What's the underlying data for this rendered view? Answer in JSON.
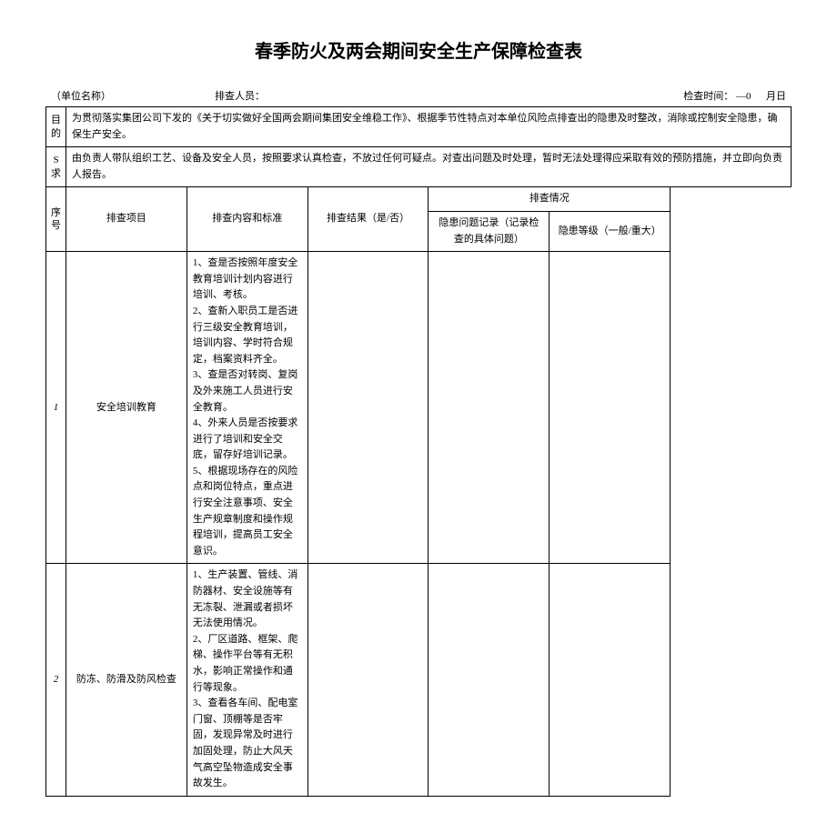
{
  "title": "春季防火及两会期间安全生产保障检查表",
  "meta": {
    "unit_label": "（单位名称）",
    "inspector_label": "排查人员：",
    "time_label": "检查时间：",
    "time_value": "—0",
    "time_suffix": "月日"
  },
  "purpose": {
    "label": "目的",
    "text": "为贯彻落实集团公司下发的《关于切实做好全国两会期间集团安全维稳工作》、根据季节性特点对本单位风险点排查出的隐患及时整改，消除或控制安全隐患，确保生产安全。"
  },
  "requirement": {
    "label1": "S",
    "label2": "求",
    "text": "由负责人带队组织工艺、设备及安全人员，按照要求认真检查，不放过任何可疑点。对查出问题及时处理，暂时无法处理得应采取有效的预防措施，并立即向负责人报告。"
  },
  "headers": {
    "seq": "序号",
    "item": "排查项目",
    "content": "排查内容和标准",
    "result": "排查结果（是/否）",
    "situation": "排查情况",
    "record": "隐患问题记录（记录检查的具体问题）",
    "level": "隐患等级（一般/重大）"
  },
  "rows": [
    {
      "seq": "1",
      "item": "安全培训教育",
      "lines": [
        "1、查是否按照年度安全教育培训计划内容进行培训、考核。",
        "2、查新入职员工是否进行三级安全教育培训，培训内容、学时符合规定，档案资料齐全。",
        "3、查是否对转岗、复岗及外来施工人员进行安全教育。",
        "4、外来人员是否按要求进行了培训和安全交底，留存好培训记录。",
        "5、根据现场存在的风险点和岗位特点，重点进行安全注意事项、安全生产规章制度和操作规程培训，提高员工安全意识。"
      ]
    },
    {
      "seq": "2",
      "item": "防冻、防滑及防风检查",
      "lines": [
        "1、生产装置、管线、消防器材、安全设施等有无冻裂、泄漏或者损坏无法使用情况。",
        "2、厂区道路、框架、爬梯、操作平台等有无积水，影响正常操作和通行等现象。",
        "3、查看各车间、配电室门窗、顶棚等是否牢固，发现异常及时进行加固处理，防止大风天气高空坠物造成安全事故发生。"
      ]
    }
  ]
}
